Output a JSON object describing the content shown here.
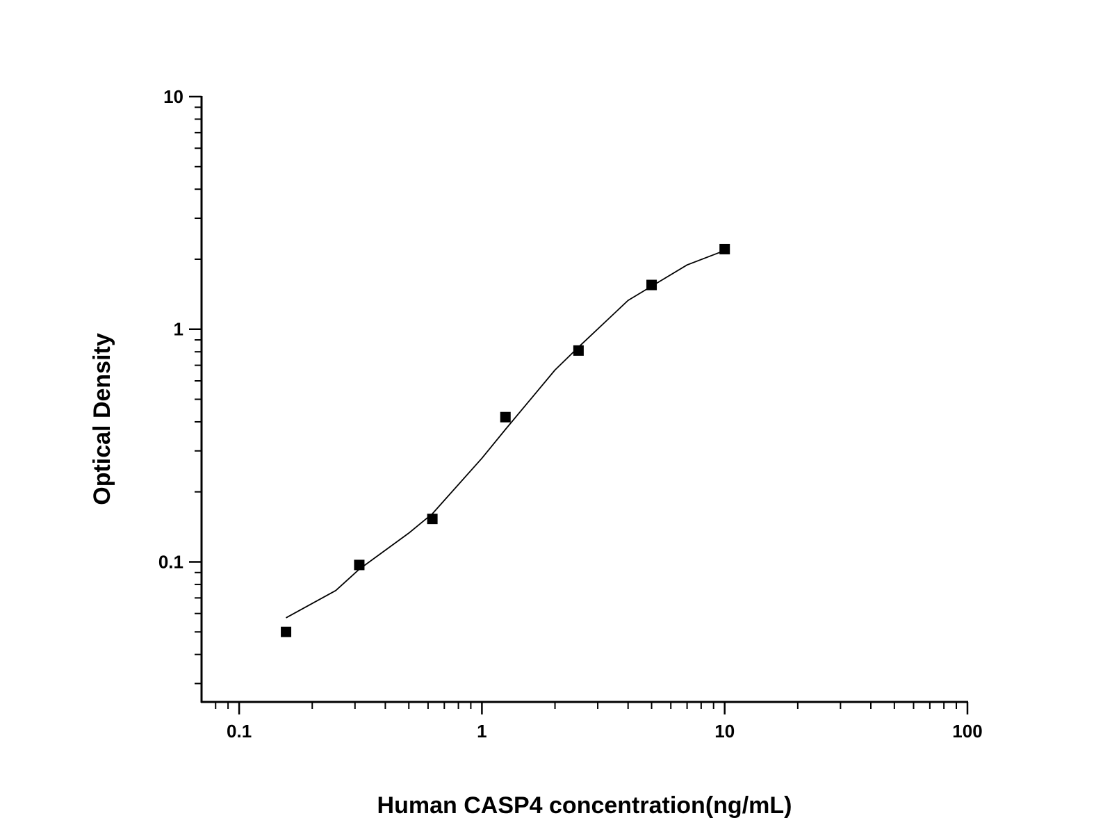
{
  "chart_data": {
    "type": "scatter",
    "xlabel": "Human CASP4 concentration(ng/mL)",
    "ylabel": "Optical Density",
    "xscale": "log",
    "yscale": "log",
    "xlim": [
      0.07,
      100
    ],
    "ylim": [
      0.025,
      10
    ],
    "xticks": [
      0.1,
      1,
      10,
      100
    ],
    "yticks": [
      0.1,
      1,
      10
    ],
    "xminorticks": [
      0.08,
      0.09,
      0.2,
      0.3,
      0.4,
      0.5,
      0.6,
      0.7,
      0.8,
      0.9,
      2,
      3,
      4,
      5,
      6,
      7,
      8,
      9,
      20,
      30,
      40,
      50,
      60,
      70,
      80,
      90
    ],
    "yminorticks": [
      0.03,
      0.04,
      0.05,
      0.06,
      0.07,
      0.08,
      0.09,
      0.2,
      0.3,
      0.4,
      0.5,
      0.6,
      0.7,
      0.8,
      0.9,
      2,
      3,
      4,
      5,
      6,
      7,
      8,
      9
    ],
    "color": "#000000",
    "points": {
      "x": [
        0.156,
        0.3125,
        0.625,
        1.25,
        2.5,
        5,
        10
      ],
      "values": [
        0.05,
        0.097,
        0.153,
        0.419,
        0.81,
        1.55,
        2.21
      ]
    },
    "curve": {
      "x": [
        0.156,
        0.25,
        0.3125,
        0.5,
        0.625,
        1,
        1.25,
        2,
        2.5,
        4,
        5,
        7,
        10
      ],
      "values": [
        0.0575,
        0.0753,
        0.093,
        0.133,
        0.161,
        0.279,
        0.371,
        0.668,
        0.838,
        1.33,
        1.53,
        1.89,
        2.18
      ]
    }
  }
}
